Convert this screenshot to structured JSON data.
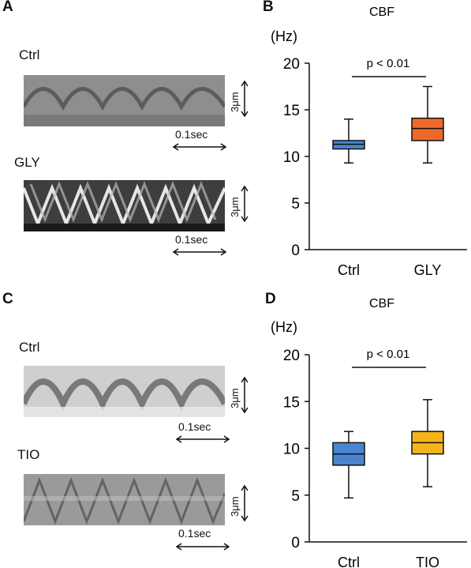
{
  "panels": {
    "A": {
      "letter": "A",
      "rows": [
        {
          "label": "Ctrl",
          "scale_v": "3μm",
          "scale_h": "0.1sec"
        },
        {
          "label": "GLY",
          "scale_v": "3μm",
          "scale_h": "0.1sec"
        }
      ]
    },
    "C": {
      "letter": "C",
      "rows": [
        {
          "label": "Ctrl",
          "scale_v": "3μm",
          "scale_h": "0.1sec"
        },
        {
          "label": "TIO",
          "scale_v": "3μm",
          "scale_h": "0.1sec"
        }
      ]
    },
    "B": {
      "letter": "B"
    },
    "D": {
      "letter": "D"
    }
  },
  "chart_data": [
    {
      "type": "box",
      "panel": "B",
      "title": "CBF",
      "ylabel": "(Hz)",
      "ylim": [
        0,
        20
      ],
      "yticks": [
        "0",
        "5",
        "10",
        "15",
        "20"
      ],
      "categories": [
        "Ctrl",
        "GLY"
      ],
      "colors": [
        "#4a86d0",
        "#ef6a2a"
      ],
      "boxes": [
        {
          "min": 9.3,
          "q1": 10.8,
          "median": 11.3,
          "q3": 11.7,
          "max": 14.0
        },
        {
          "min": 9.3,
          "q1": 11.7,
          "median": 13.0,
          "q3": 14.1,
          "max": 17.5
        }
      ],
      "significance": "p < 0.01",
      "grid": false
    },
    {
      "type": "box",
      "panel": "D",
      "title": "CBF",
      "ylabel": "(Hz)",
      "ylim": [
        0,
        20
      ],
      "yticks": [
        "0",
        "5",
        "10",
        "15",
        "20"
      ],
      "categories": [
        "Ctrl",
        "TIO"
      ],
      "colors": [
        "#4a86d0",
        "#f5b41a"
      ],
      "boxes": [
        {
          "min": 4.7,
          "q1": 8.2,
          "median": 9.4,
          "q3": 10.6,
          "max": 11.8
        },
        {
          "min": 5.9,
          "q1": 9.4,
          "median": 10.6,
          "q3": 11.8,
          "max": 15.2
        }
      ],
      "significance": "p < 0.01",
      "grid": false
    }
  ]
}
